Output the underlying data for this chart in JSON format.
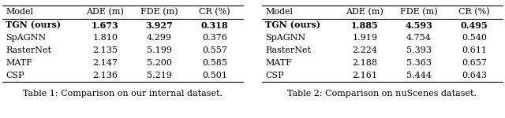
{
  "table1": {
    "caption": "Table 1: Comparison on our internal dataset.",
    "headers": [
      "Model",
      "ADE (m)",
      "FDE (m)",
      "CR (%)"
    ],
    "rows": [
      [
        "TGN (ours)",
        "1.673",
        "3.927",
        "0.318"
      ],
      [
        "SpAGNN",
        "1.810",
        "4.299",
        "0.376"
      ],
      [
        "RasterNet",
        "2.135",
        "5.199",
        "0.557"
      ],
      [
        "MATF",
        "2.147",
        "5.200",
        "0.585"
      ],
      [
        "CSP",
        "2.136",
        "5.219",
        "0.501"
      ]
    ],
    "bold_row": 0
  },
  "table2": {
    "caption": "Table 2: Comparison on nuScenes dataset.",
    "headers": [
      "Model",
      "ADE (m)",
      "FDE (m)",
      "CR (%)"
    ],
    "rows": [
      [
        "TGN (ours)",
        "1.885",
        "4.593",
        "0.495"
      ],
      [
        "SpAGNN",
        "1.919",
        "4.754",
        "0.540"
      ],
      [
        "RasterNet",
        "2.224",
        "5.393",
        "0.611"
      ],
      [
        "MATF",
        "2.188",
        "5.363",
        "0.657"
      ],
      [
        "CSP",
        "2.161",
        "5.444",
        "0.643"
      ]
    ],
    "bold_row": 0
  },
  "background_color": "#ffffff",
  "text_color": "#000000",
  "font_size": 8.0,
  "caption_font_size": 8.0
}
